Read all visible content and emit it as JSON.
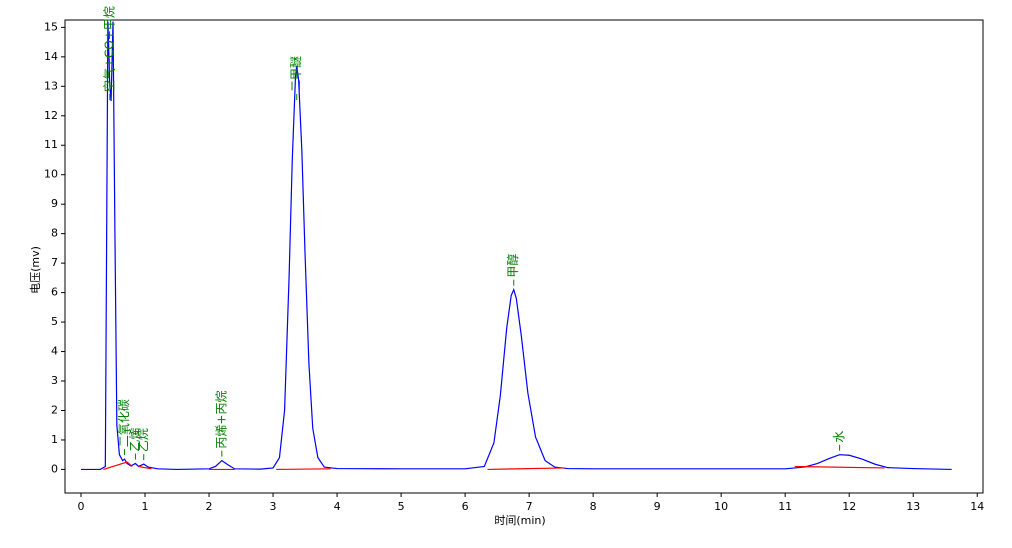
{
  "chart_data": {
    "type": "line",
    "x_label": "时间(min)",
    "y_label": "电压(mv)",
    "xlim": [
      -0.25,
      14.09
    ],
    "ylim": [
      -0.8,
      15.25
    ],
    "xticks": [
      0,
      1,
      2,
      3,
      4,
      5,
      6,
      7,
      8,
      9,
      10,
      11,
      12,
      13,
      14
    ],
    "yticks": [
      0,
      1,
      2,
      3,
      4,
      5,
      6,
      7,
      8,
      9,
      10,
      11,
      12,
      13,
      14,
      15
    ],
    "series": [
      {
        "color": "#0000ff",
        "x": [
          0,
          0.3,
          0.38,
          0.42,
          0.45,
          0.47,
          0.5,
          0.53,
          0.56,
          0.6,
          0.65,
          0.68,
          0.72,
          0.78,
          0.85,
          0.9,
          0.98,
          1.05,
          1.2,
          1.5,
          2.0,
          2.1,
          2.2,
          2.3,
          2.4,
          2.8,
          3.0,
          3.1,
          3.18,
          3.25,
          3.3,
          3.35,
          3.37,
          3.4,
          3.45,
          3.5,
          3.56,
          3.62,
          3.7,
          3.8,
          4.0,
          5.0,
          6.0,
          6.3,
          6.45,
          6.55,
          6.65,
          6.72,
          6.76,
          6.8,
          6.88,
          6.98,
          7.1,
          7.25,
          7.4,
          7.6,
          8,
          9,
          10,
          11,
          11.3,
          11.5,
          11.7,
          11.85,
          12.0,
          12.2,
          12.4,
          12.6,
          13,
          13.6
        ],
        "values": [
          0,
          0,
          0.1,
          15.2,
          13,
          12.5,
          15.2,
          8,
          1.5,
          0.5,
          0.3,
          0.35,
          0.2,
          0.12,
          0.2,
          0.1,
          0.18,
          0.08,
          0.02,
          0,
          0.02,
          0.1,
          0.3,
          0.15,
          0.02,
          0.01,
          0.05,
          0.4,
          2,
          6.5,
          10.5,
          13.3,
          13.7,
          13.2,
          10.8,
          7.3,
          3.6,
          1.4,
          0.4,
          0.08,
          0.03,
          0.02,
          0.02,
          0.1,
          0.9,
          2.5,
          4.8,
          5.9,
          6.1,
          5.8,
          4.5,
          2.6,
          1.1,
          0.3,
          0.08,
          0.03,
          0.02,
          0.02,
          0.02,
          0.02,
          0.08,
          0.2,
          0.38,
          0.5,
          0.48,
          0.35,
          0.18,
          0.06,
          0.03,
          0
        ]
      },
      {
        "color": "#ff0000",
        "x": [
          0.35,
          0.72,
          0.8,
          0.9,
          0.9,
          1.1,
          2.0,
          2.0,
          2.4,
          3.0,
          3.05,
          3.9,
          6.3,
          6.35,
          7.55,
          11.1,
          11.15,
          12.55
        ],
        "values": [
          0,
          0.25,
          0.1,
          null,
          0.1,
          0.02,
          null,
          0,
          0,
          null,
          0,
          0.02,
          null,
          0,
          0.05,
          null,
          0.1,
          0.05
        ]
      }
    ],
    "annotations": [
      {
        "text": "空气+CO+甲烷",
        "x": 0.45,
        "y": 15.2
      },
      {
        "text": "二氧化碳",
        "x": 0.68,
        "y": 0.35
      },
      {
        "text": "乙烯",
        "x": 0.85,
        "y": 0.2
      },
      {
        "text": "乙烷",
        "x": 0.98,
        "y": 0.18
      },
      {
        "text": "丙烯+丙烷",
        "x": 2.2,
        "y": 0.3
      },
      {
        "text": "二甲醚",
        "x": 3.37,
        "y": 13.7
      },
      {
        "text": "甲醇",
        "x": 6.76,
        "y": 6.1
      },
      {
        "text": "水",
        "x": 11.85,
        "y": 0.5
      }
    ]
  }
}
